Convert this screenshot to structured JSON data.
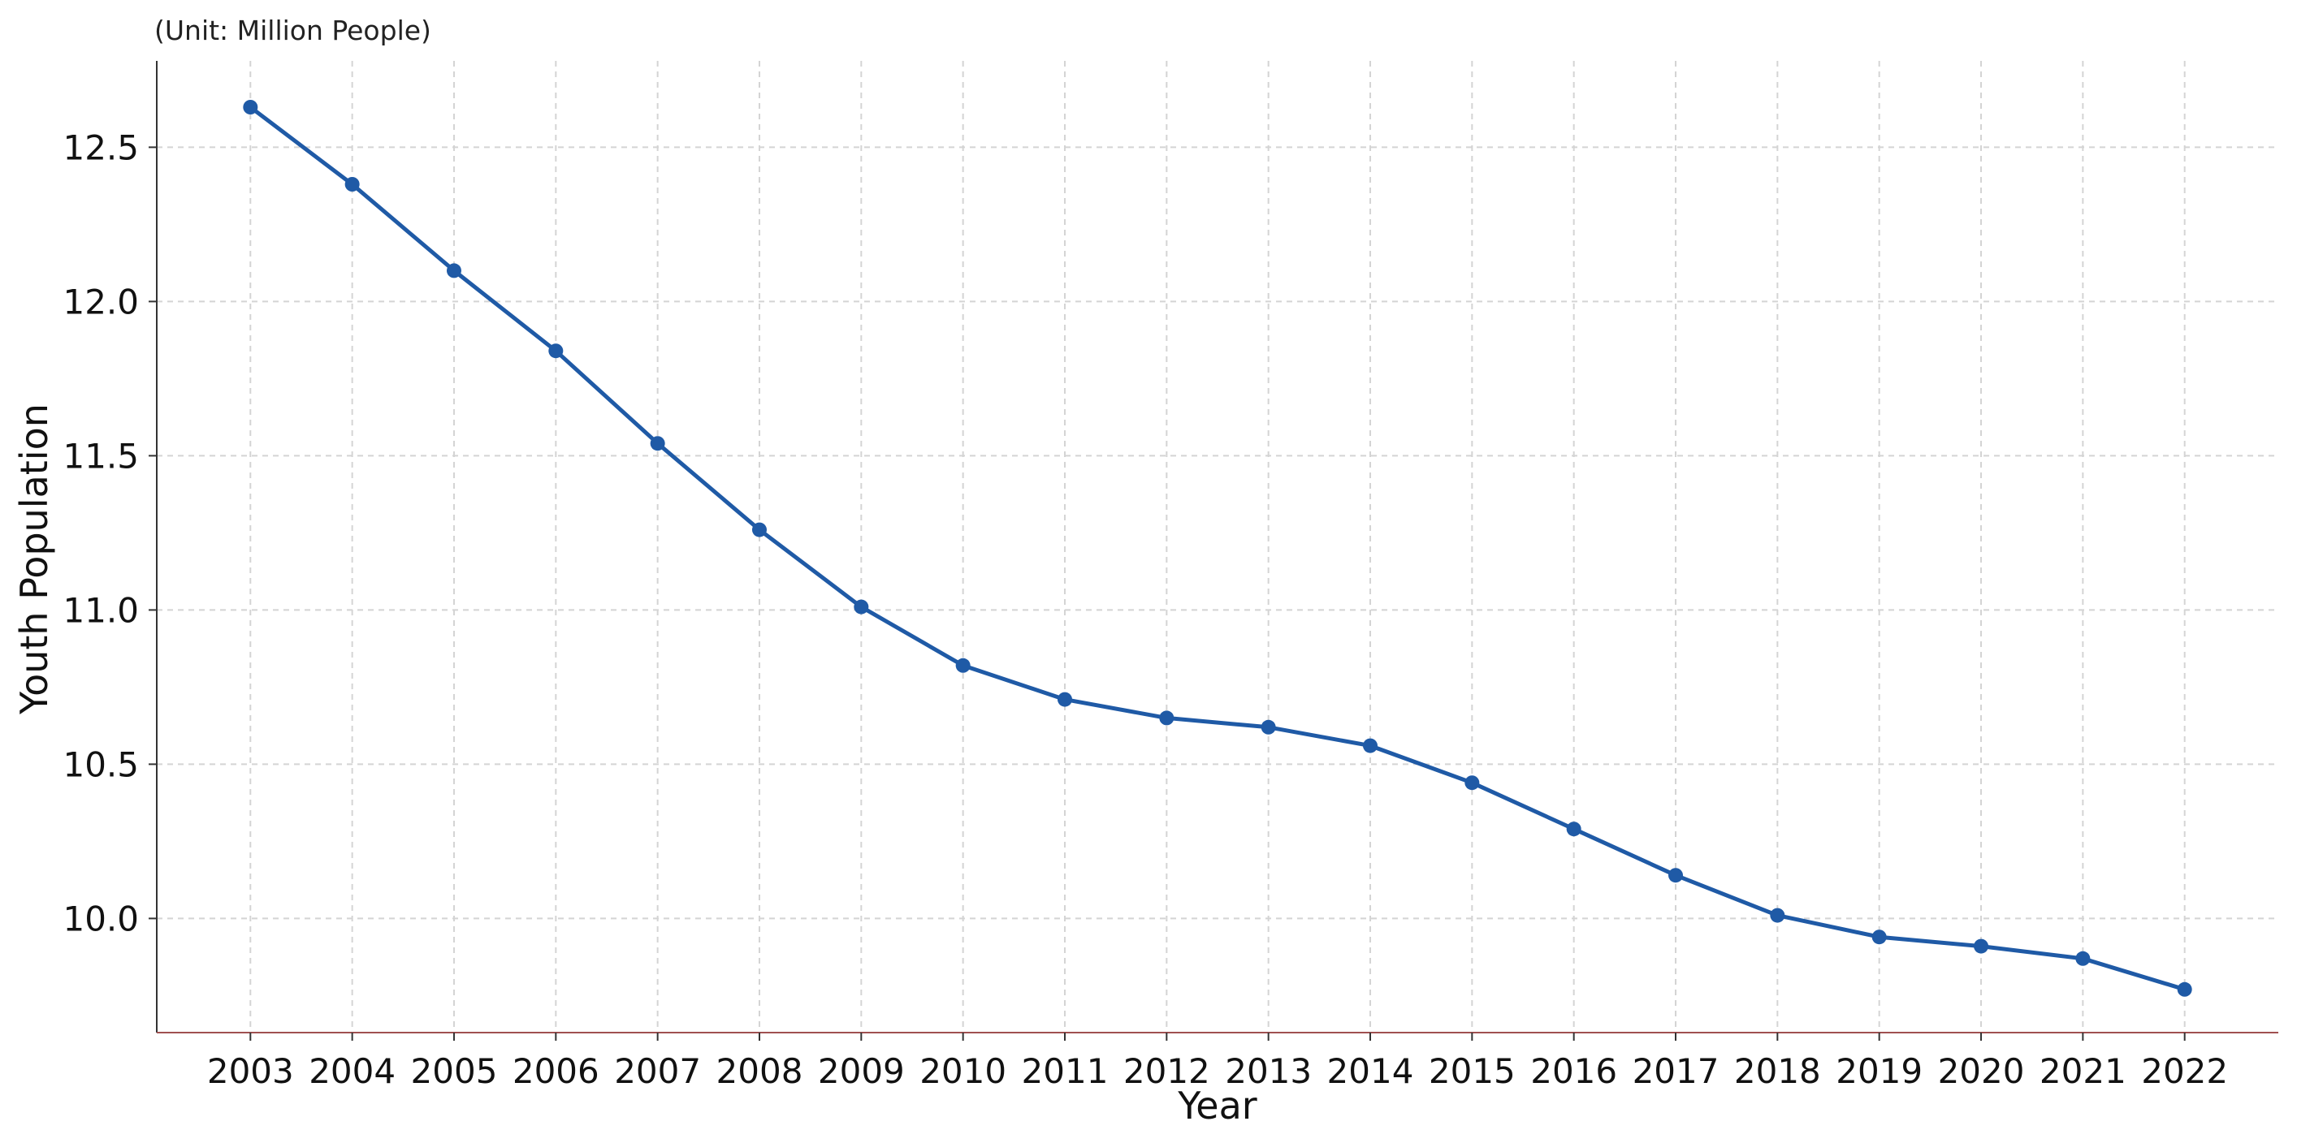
{
  "unit_note": "(Unit: Million People)",
  "colors": {
    "line": "#1f5aa6",
    "grid": "#d4d4d4",
    "axis": "#333333",
    "axis_bottom": "#a05050",
    "text": "#111111"
  },
  "chart_data": {
    "type": "line",
    "title": "",
    "xlabel": "Year",
    "ylabel": "Youth Population",
    "x": [
      2003,
      2004,
      2005,
      2006,
      2007,
      2008,
      2009,
      2010,
      2011,
      2012,
      2013,
      2014,
      2015,
      2016,
      2017,
      2018,
      2019,
      2020,
      2021,
      2022
    ],
    "series": [
      {
        "name": "",
        "values": [
          12.63,
          12.38,
          12.1,
          11.84,
          11.54,
          11.26,
          11.01,
          10.82,
          10.71,
          10.65,
          10.62,
          10.56,
          10.44,
          10.29,
          10.14,
          10.01,
          9.94,
          9.91,
          9.87,
          9.77
        ]
      }
    ],
    "yticks": [
      10.0,
      10.5,
      11.0,
      11.5,
      12.0,
      12.5
    ],
    "ylim": [
      9.63,
      12.78
    ],
    "xlim": [
      2002.08,
      2022.92
    ],
    "grid": true,
    "legend": "none",
    "marker": "circle"
  }
}
